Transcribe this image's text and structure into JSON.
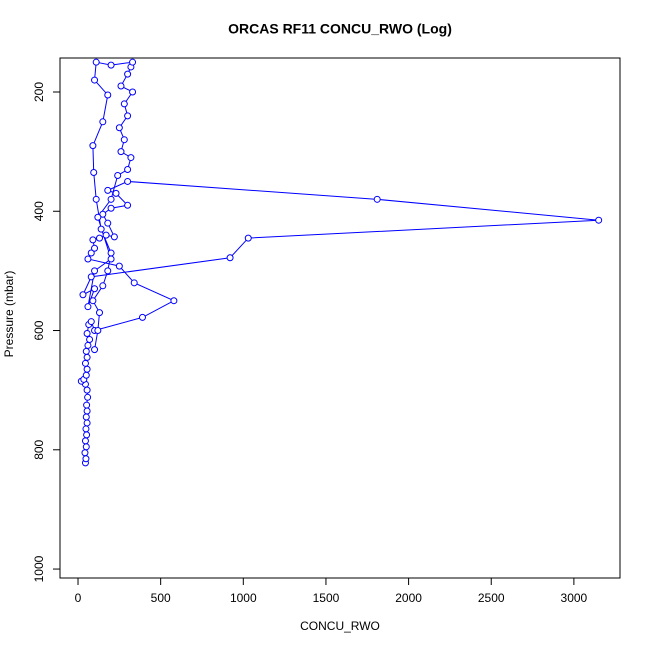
{
  "chart_data": {
    "type": "line",
    "title": "ORCAS RF11 CONCU_RWO (Log)",
    "xlabel": "CONCU_RWO",
    "ylabel": "Pressure (mbar)",
    "xlim": [
      -109,
      3279
    ],
    "ylim": [
      1015,
      143
    ],
    "y_inverted": true,
    "xticks": [
      0,
      500,
      1000,
      1500,
      2000,
      2500,
      3000
    ],
    "yticks": [
      200,
      400,
      600,
      800,
      1000
    ],
    "series": [
      {
        "color": "#0000ff",
        "x": [
          45,
          48,
          42,
          50,
          45,
          52,
          48,
          55,
          50,
          55,
          52,
          58,
          55,
          45,
          20,
          35,
          50,
          55,
          45,
          55,
          50,
          60,
          70,
          55,
          65,
          80,
          100,
          390,
          580,
          340,
          250,
          60,
          80,
          100,
          90,
          130,
          170,
          220,
          180,
          150,
          200,
          300,
          230,
          180,
          300,
          1810,
          3150,
          1030,
          920,
          80,
          30,
          100,
          60,
          100,
          200,
          120,
          200,
          240,
          300,
          320,
          260,
          280,
          250,
          300,
          280,
          330,
          260,
          300,
          320,
          330,
          200,
          110,
          100,
          180,
          150,
          90,
          95,
          110,
          140,
          200,
          180,
          150,
          90,
          130,
          120,
          100
        ],
        "y": [
          822,
          815,
          805,
          795,
          785,
          775,
          765,
          755,
          745,
          735,
          725,
          712,
          700,
          690,
          685,
          682,
          675,
          665,
          655,
          645,
          635,
          625,
          615,
          605,
          590,
          585,
          600,
          578,
          550,
          520,
          492,
          480,
          470,
          462,
          448,
          445,
          440,
          443,
          420,
          405,
          395,
          390,
          370,
          365,
          350,
          380,
          415,
          445,
          478,
          510,
          540,
          530,
          560,
          500,
          480,
          410,
          380,
          340,
          330,
          310,
          300,
          280,
          260,
          240,
          220,
          200,
          190,
          170,
          158,
          150,
          155,
          150,
          180,
          205,
          250,
          290,
          335,
          380,
          430,
          470,
          500,
          525,
          550,
          570,
          600,
          632
        ]
      }
    ]
  }
}
